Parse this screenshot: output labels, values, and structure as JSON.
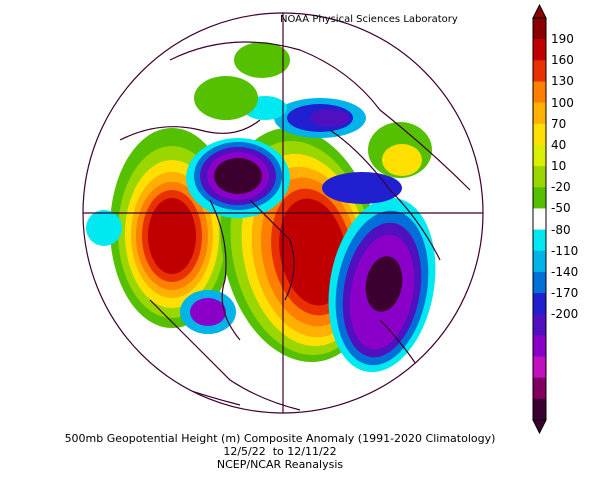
{
  "header": {
    "source": "NOAA Physical Sciences Laboratory"
  },
  "caption": {
    "line1": "500mb Geopotential Height (m) Composite Anomaly (1991-2020 Climatology)",
    "line2": "12/5/22  to 12/11/22",
    "line3": "NCEP/NCAR Reanalysis"
  },
  "colorbar": {
    "ticks": [
      "190",
      "160",
      "130",
      "100",
      "70",
      "40",
      "10",
      "-20",
      "-50",
      "-80",
      "-110",
      "-140",
      "-170",
      "-200"
    ],
    "colors": [
      "#8b0000",
      "#c00000",
      "#e83000",
      "#ff7f00",
      "#ffb000",
      "#ffe000",
      "#d8ef00",
      "#9ad600",
      "#55c000",
      "#ffffff",
      "#00e8f0",
      "#00b4e8",
      "#0070d8",
      "#2020d0",
      "#5010c0",
      "#8a00c8",
      "#c010c0",
      "#800060",
      "#3c0030"
    ]
  },
  "map": {
    "projection": "north-polar-stereographic",
    "features": [
      "positive-anomaly-north-pacific",
      "positive-anomaly-greenland-canada",
      "negative-anomaly-siberia",
      "negative-anomaly-north-atlantic",
      "negative-anomaly-scandinavia"
    ]
  }
}
